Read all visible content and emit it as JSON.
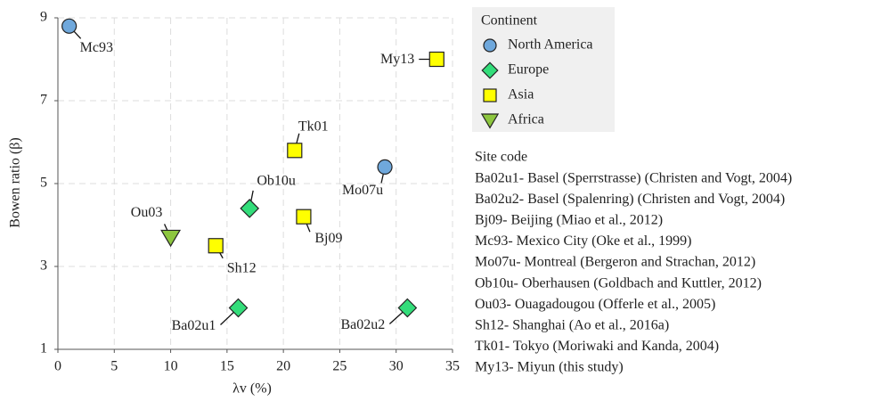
{
  "chart_data": {
    "type": "scatter",
    "x_label": "λv (%)",
    "y_label": "Bowen ratio (β)",
    "xlim": [
      0,
      35
    ],
    "ylim": [
      1,
      9
    ],
    "xticks": [
      0,
      5,
      10,
      15,
      20,
      25,
      30,
      35
    ],
    "yticks": [
      1,
      3,
      5,
      7,
      9
    ],
    "grid": true,
    "legend_title": "Continent",
    "series": [
      {
        "name": "North America",
        "color": "#6fa8dc",
        "marker": "circle",
        "x": [
          1,
          29
        ],
        "values": [
          8.8,
          5.4
        ],
        "labels": [
          "Mc93",
          "Mo07u"
        ]
      },
      {
        "name": "Europe",
        "color": "#33dd7a",
        "marker": "diamond",
        "x": [
          17,
          16,
          31
        ],
        "values": [
          4.4,
          2,
          2
        ],
        "labels": [
          "Ob10u",
          "Ba02u1",
          "Ba02u2"
        ]
      },
      {
        "name": "Asia",
        "color": "#ffff00",
        "marker": "square",
        "x": [
          33.6,
          21,
          21.8,
          14
        ],
        "values": [
          8,
          5.8,
          4.2,
          3.5
        ],
        "labels": [
          "My13",
          "Tk01",
          "Bj09",
          "Sh12"
        ]
      },
      {
        "name": "Africa",
        "color": "#8dc63f",
        "marker": "triangle-down",
        "x": [
          10
        ],
        "values": [
          3.7
        ],
        "labels": [
          "Ou03"
        ]
      }
    ],
    "site_code_title": "Site code",
    "site_codes": [
      "Ba02u1- Basel (Sperrstrasse) (Christen and Vogt, 2004)",
      "Ba02u2- Basel (Spalenring) (Christen and Vogt, 2004)",
      "Bj09- Beijing (Miao et al., 2012)",
      "Mc93- Mexico City (Oke et al., 1999)",
      "Mo07u- Montreal (Bergeron and Strachan, 2012)",
      "Ob10u- Oberhausen (Goldbach and Kuttler, 2012)",
      "Ou03- Ouagadougou (Offerle et al., 2005)",
      "Sh12- Shanghai (Ao et al., 2016a)",
      "Tk01- Tokyo (Moriwaki and Kanda, 2004)",
      "My13- Miyun (this study)"
    ]
  }
}
